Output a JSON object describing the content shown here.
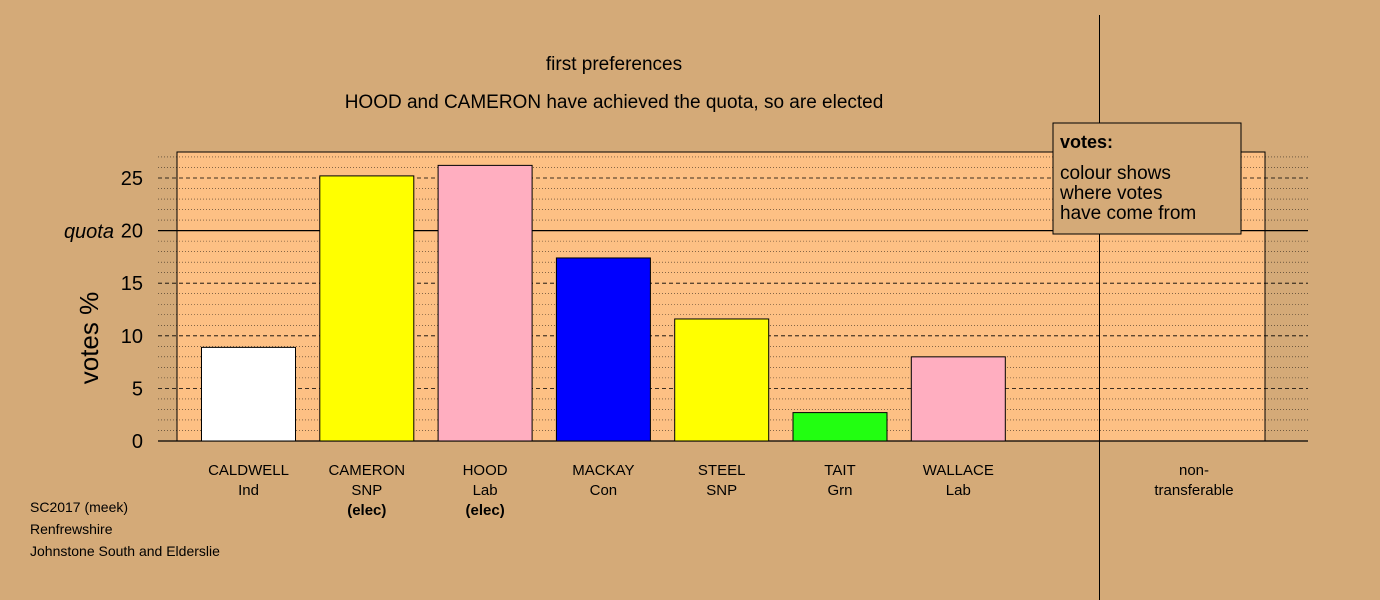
{
  "colors": {
    "background": "#d4aa78",
    "plot_area": "#fdc084",
    "legend_box": "#d4aa78"
  },
  "chart_data": {
    "type": "bar",
    "title": "first preferences",
    "subtitle": "HOOD and CAMERON have achieved the quota, so are elected",
    "ylabel": "votes %",
    "ylim": [
      0,
      27.5
    ],
    "yticks": [
      0,
      5,
      10,
      15,
      20,
      25
    ],
    "grid": true,
    "quota": {
      "value": 20,
      "label": "quota"
    },
    "bars": [
      {
        "name": "CALDWELL",
        "party": "Ind",
        "status": "",
        "value": 8.9,
        "color": "#ffffff"
      },
      {
        "name": "CAMERON",
        "party": "SNP",
        "status": "(elec)",
        "value": 25.2,
        "color": "#ffff00"
      },
      {
        "name": "HOOD",
        "party": "Lab",
        "status": "(elec)",
        "value": 26.2,
        "color": "#ffaec0"
      },
      {
        "name": "MACKAY",
        "party": "Con",
        "status": "",
        "value": 17.4,
        "color": "#0000ff"
      },
      {
        "name": "STEEL",
        "party": "SNP",
        "status": "",
        "value": 11.6,
        "color": "#ffff00"
      },
      {
        "name": "TAIT",
        "party": "Grn",
        "status": "",
        "value": 2.7,
        "color": "#22ff11"
      },
      {
        "name": "WALLACE",
        "party": "Lab",
        "status": "",
        "value": 8.0,
        "color": "#ffaec0"
      }
    ],
    "nontransferable": {
      "line1": "non-",
      "line2": "transferable",
      "value": 0
    },
    "legend": {
      "title": "votes:",
      "lines": [
        "colour shows",
        "where votes",
        "have come from"
      ],
      "placement": "top-right"
    }
  },
  "footer": {
    "lines": [
      "SC2017 (meek)",
      "Renfrewshire",
      "Johnstone South and Elderslie"
    ]
  }
}
